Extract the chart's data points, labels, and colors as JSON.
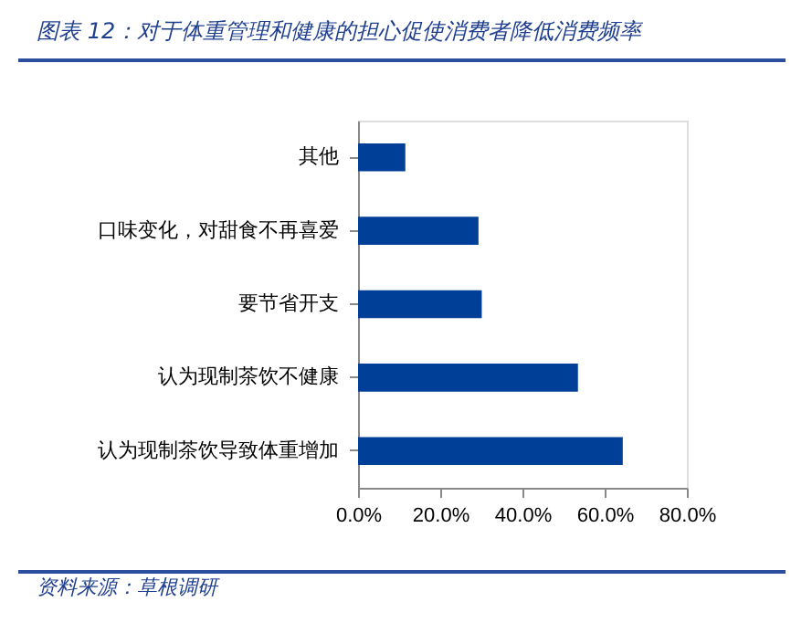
{
  "chart_data": {
    "type": "bar",
    "orientation": "horizontal",
    "title": "图表 12：对于体重管理和健康的担心促使消费者降低消费频率",
    "categories": [
      "其他",
      "口味变化，对甜食不再喜爱",
      "要节省开支",
      "认为现制茶饮不健康",
      "认为现制茶饮导致体重增加"
    ],
    "values": [
      11.5,
      29.3,
      30.1,
      53.5,
      64.4
    ],
    "color": "#003f98",
    "xlim": [
      0,
      80
    ],
    "xticks": [
      {
        "value": 0,
        "label": "0.0%"
      },
      {
        "value": 20,
        "label": "20.0%"
      },
      {
        "value": 40,
        "label": "40.0%"
      },
      {
        "value": 60,
        "label": "60.0%"
      },
      {
        "value": 80,
        "label": "80.0%"
      }
    ],
    "grid": false,
    "annotations": [
      "资料来源：草根调研"
    ]
  }
}
